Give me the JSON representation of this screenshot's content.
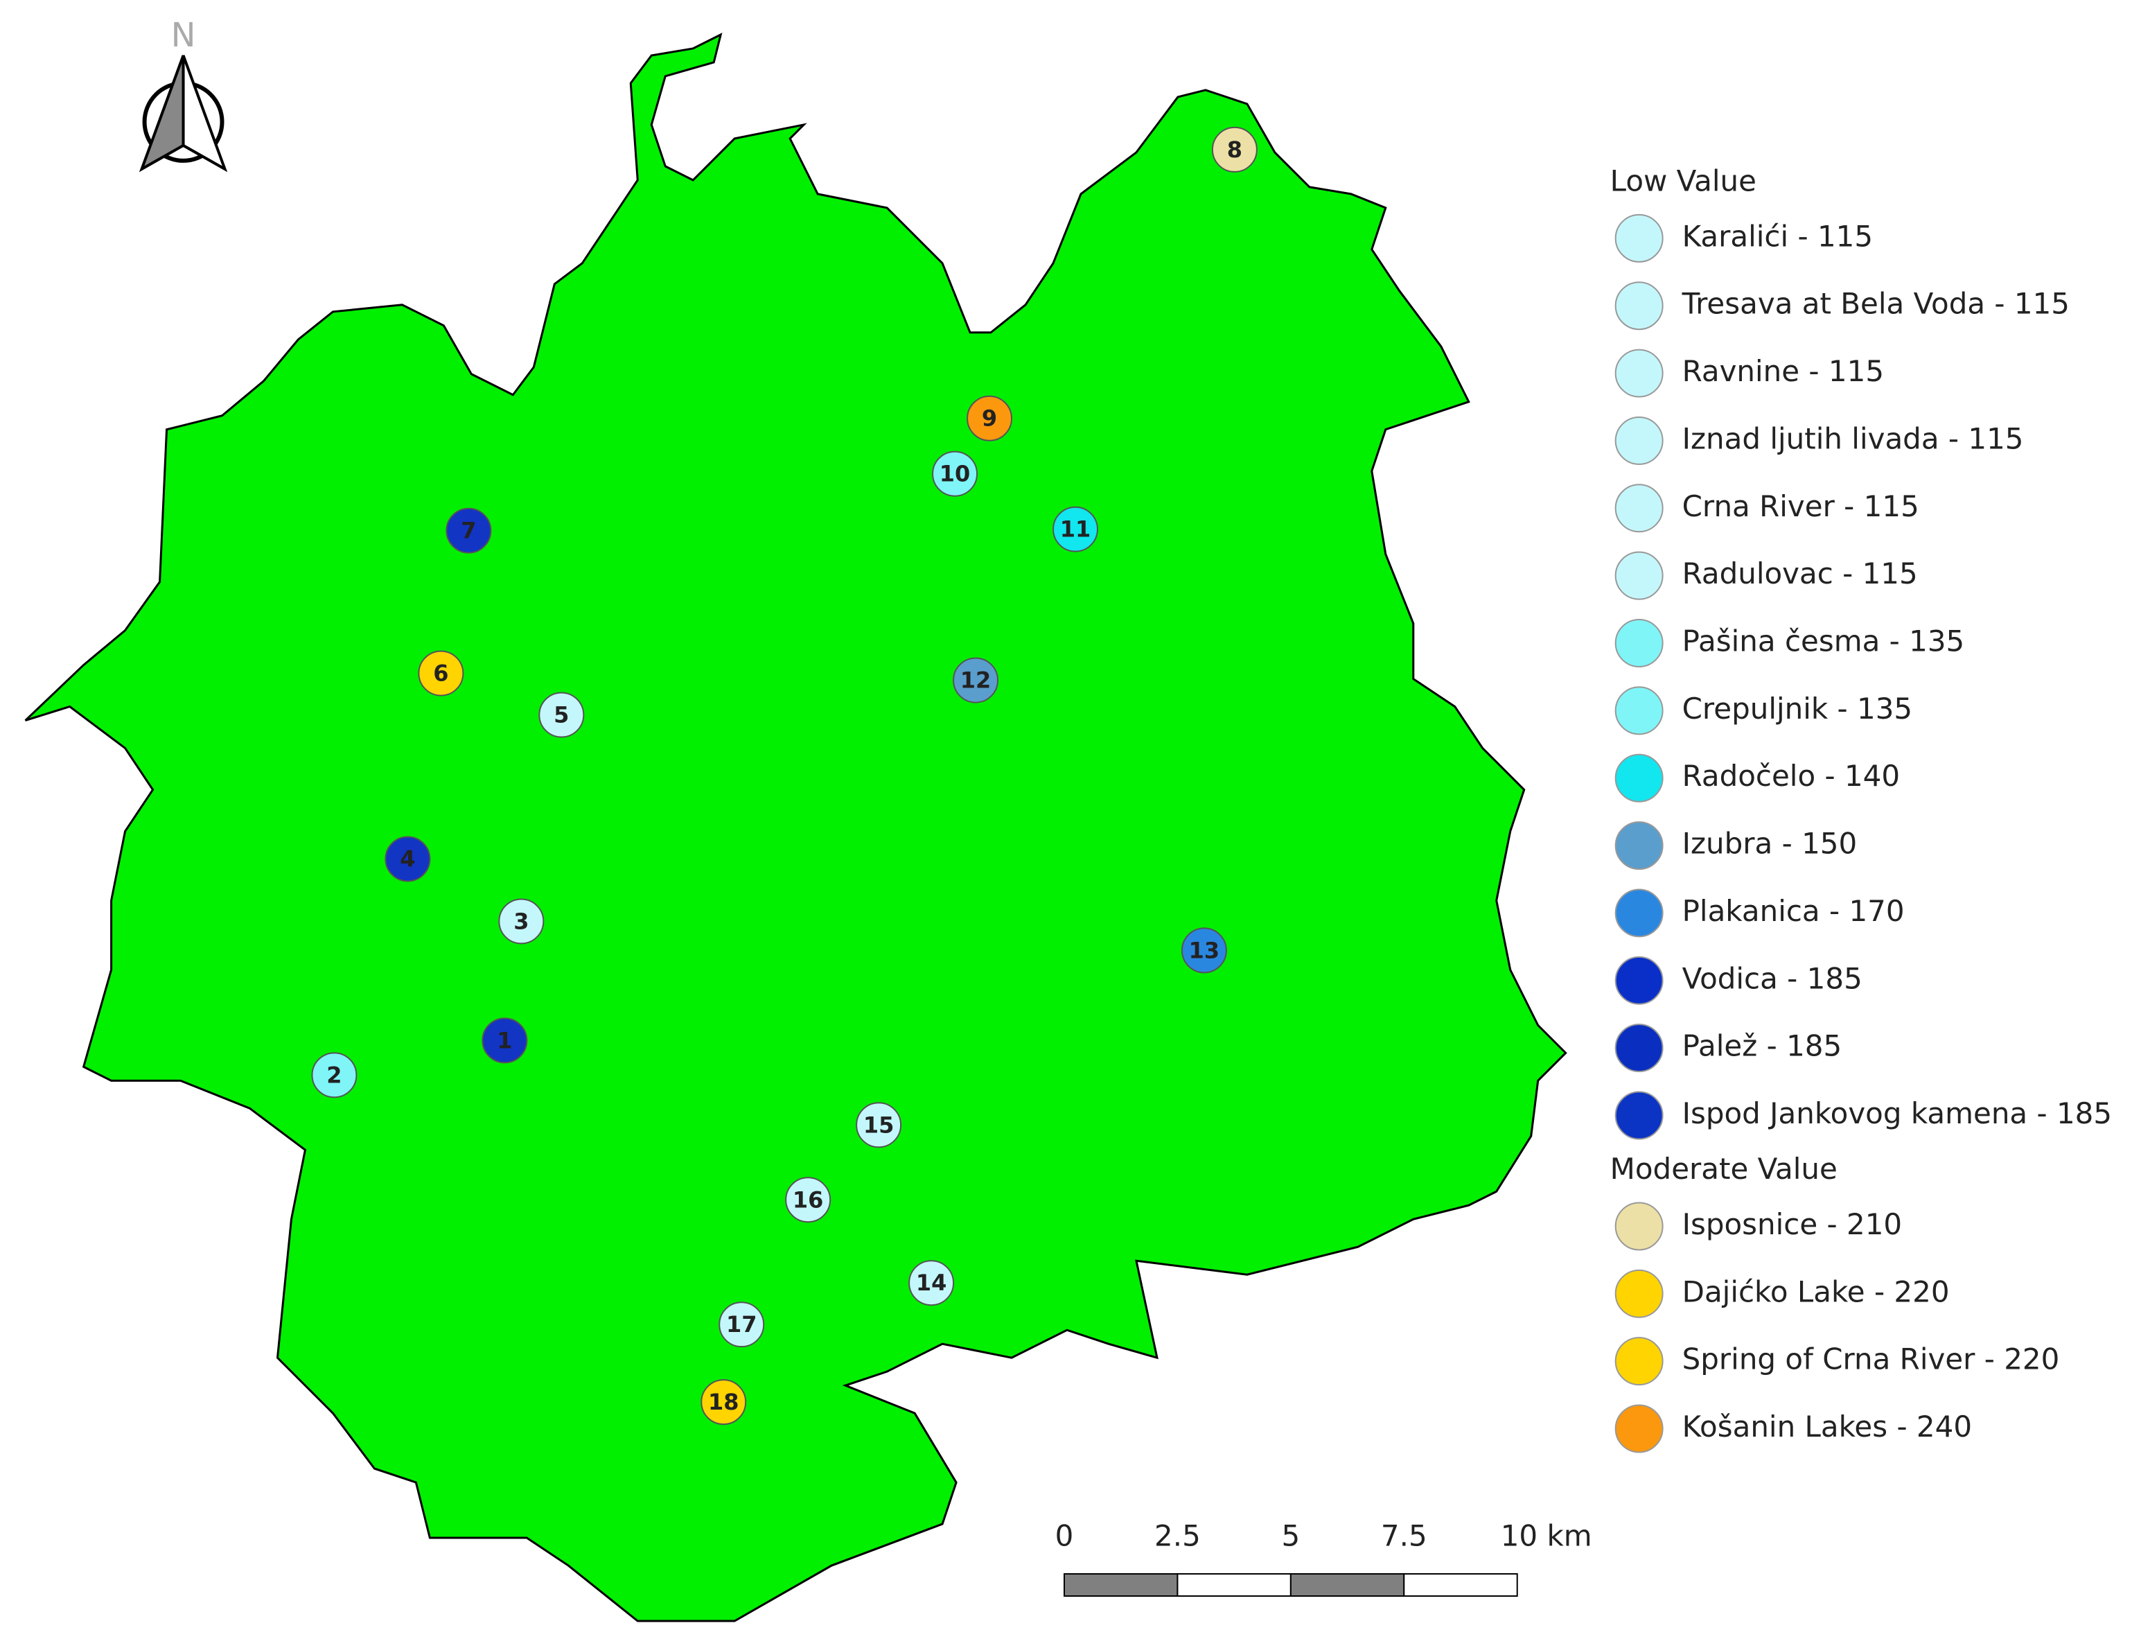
{
  "north_arrow": {
    "label": "N"
  },
  "markers": [
    {
      "label": "1",
      "color": "#1235c4"
    },
    {
      "label": "2",
      "color": "#7ff5f8"
    },
    {
      "label": "3",
      "color": "#c4f7fb"
    },
    {
      "label": "4",
      "color": "#1235c4"
    },
    {
      "label": "5",
      "color": "#c4f7fb"
    },
    {
      "label": "6",
      "color": "#ffd400"
    },
    {
      "label": "7",
      "color": "#1235c4"
    },
    {
      "label": "8",
      "color": "#ede0a6"
    },
    {
      "label": "9",
      "color": "#fb980e"
    },
    {
      "label": "10",
      "color": "#7ff5f8"
    },
    {
      "label": "11",
      "color": "#12e6ef"
    },
    {
      "label": "12",
      "color": "#5a9ecd"
    },
    {
      "label": "13",
      "color": "#2a87e0"
    },
    {
      "label": "14",
      "color": "#c4f7fb"
    },
    {
      "label": "15",
      "color": "#c4f7fb"
    },
    {
      "label": "16",
      "color": "#c4f7fb"
    },
    {
      "label": "17",
      "color": "#c4f7fb"
    },
    {
      "label": "18",
      "color": "#ffd400"
    }
  ],
  "legend": [
    {
      "title": "Low Value",
      "entries": [
        {
          "label": "Karalići - 115",
          "color": "#c4f7fb"
        },
        {
          "label": "Tresava at Bela Voda - 115",
          "color": "#c4f7fb"
        },
        {
          "label": "Ravnine - 115",
          "color": "#c4f7fb"
        },
        {
          "label": "Iznad ljutih livada - 115",
          "color": "#c4f7fb"
        },
        {
          "label": "Crna River - 115",
          "color": "#c4f7fb"
        },
        {
          "label": "Radulovac - 115",
          "color": "#c4f7fb"
        },
        {
          "label": "Pašina česma - 135",
          "color": "#7ff5f8"
        },
        {
          "label": "Crepuljnik - 135",
          "color": "#7ff5f8"
        },
        {
          "label": "Radočelo - 140",
          "color": "#12e6ef"
        },
        {
          "label": "Izubra - 150",
          "color": "#5a9ecd"
        },
        {
          "label": "Plakanica - 170",
          "color": "#2a87e0"
        },
        {
          "label": "Vodica - 185",
          "color": "#0a2fc8"
        },
        {
          "label": "Palež - 185",
          "color": "#0a2fc0"
        },
        {
          "label": "Ispod Jankovog kamena - 185",
          "color": "#0b33c4"
        }
      ]
    },
    {
      "title": "Moderate Value",
      "entries": [
        {
          "label": "Isposnice - 210",
          "color": "#ede0a6"
        },
        {
          "label": "Dajićko Lake - 220",
          "color": "#ffd400"
        },
        {
          "label": "Spring of Crna River - 220",
          "color": "#ffd400"
        },
        {
          "label": "Košanin Lakes - 240",
          "color": "#fb980e"
        }
      ]
    }
  ],
  "scale_bar": {
    "labels": [
      "0",
      "2.5",
      "5",
      "7.5",
      "10 km"
    ]
  }
}
